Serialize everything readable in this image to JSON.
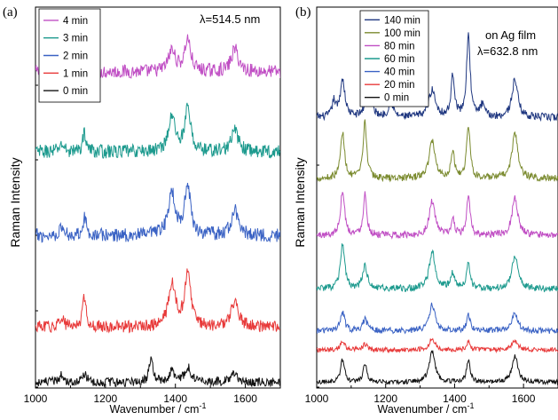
{
  "chart_data": [
    {
      "type": "line",
      "panel_label": "(a)",
      "title": "λ=514.5 nm",
      "xlabel": "Wavenumber / cm-1",
      "ylabel": "Raman Intensity",
      "xlim": [
        1000,
        1700
      ],
      "x_ticks": [
        "1000",
        "1200",
        "1400",
        "1600"
      ],
      "y_tick_labels": [],
      "series": [
        {
          "name": "4 min",
          "color": "#c04ec4",
          "baseline": 0.83,
          "noise": 0.018,
          "peaks": [
            [
              1140,
              0.03,
              6
            ],
            [
              1390,
              0.055,
              12
            ],
            [
              1435,
              0.085,
              10
            ],
            [
              1570,
              0.06,
              12
            ]
          ]
        },
        {
          "name": "3 min",
          "color": "#1d9a8e",
          "baseline": 0.62,
          "noise": 0.018,
          "peaks": [
            [
              1075,
              0.02,
              8
            ],
            [
              1140,
              0.05,
              6
            ],
            [
              1390,
              0.09,
              12
            ],
            [
              1435,
              0.11,
              10
            ],
            [
              1570,
              0.055,
              12
            ]
          ]
        },
        {
          "name": "2 min",
          "color": "#3a62c4",
          "baseline": 0.4,
          "noise": 0.018,
          "peaks": [
            [
              1075,
              0.02,
              8
            ],
            [
              1140,
              0.045,
              7
            ],
            [
              1390,
              0.11,
              12
            ],
            [
              1435,
              0.13,
              10
            ],
            [
              1570,
              0.065,
              12
            ]
          ]
        },
        {
          "name": "1 min",
          "color": "#e83a3a",
          "baseline": 0.16,
          "noise": 0.016,
          "peaks": [
            [
              1075,
              0.03,
              6
            ],
            [
              1140,
              0.08,
              6
            ],
            [
              1390,
              0.11,
              12
            ],
            [
              1435,
              0.14,
              10
            ],
            [
              1570,
              0.07,
              12
            ]
          ]
        },
        {
          "name": "0 min",
          "color": "#111111",
          "baseline": 0.015,
          "noise": 0.012,
          "peaks": [
            [
              1075,
              0.02,
              8
            ],
            [
              1140,
              0.02,
              8
            ],
            [
              1330,
              0.065,
              6
            ],
            [
              1390,
              0.03,
              10
            ],
            [
              1435,
              0.04,
              10
            ],
            [
              1570,
              0.025,
              10
            ]
          ]
        }
      ]
    },
    {
      "type": "line",
      "panel_label": "(b)",
      "title": "on Ag film",
      "subtitle": "λ=632.8 nm",
      "xlabel": "Wavenumber / cm-1",
      "ylabel": "Raman Intensity",
      "xlim": [
        1000,
        1700
      ],
      "x_ticks": [
        "1000",
        "1200",
        "1400",
        "1600"
      ],
      "y_tick_labels": [],
      "series": [
        {
          "name": "140 min",
          "color": "#1f3780",
          "baseline": 0.71,
          "noise": 0.01,
          "peaks": [
            [
              1050,
              0.04,
              6
            ],
            [
              1075,
              0.1,
              8
            ],
            [
              1150,
              0.07,
              10
            ],
            [
              1215,
              0.04,
              8
            ],
            [
              1335,
              0.07,
              12
            ],
            [
              1395,
              0.11,
              6
            ],
            [
              1440,
              0.22,
              6
            ],
            [
              1480,
              0.03,
              8
            ],
            [
              1575,
              0.1,
              10
            ]
          ]
        },
        {
          "name": "100 min",
          "color": "#7a8a2e",
          "baseline": 0.55,
          "noise": 0.009,
          "peaks": [
            [
              1075,
              0.12,
              7
            ],
            [
              1140,
              0.15,
              6
            ],
            [
              1335,
              0.1,
              10
            ],
            [
              1395,
              0.07,
              6
            ],
            [
              1440,
              0.14,
              6
            ],
            [
              1575,
              0.12,
              10
            ]
          ]
        },
        {
          "name": "80 min",
          "color": "#c04ec4",
          "baseline": 0.4,
          "noise": 0.009,
          "peaks": [
            [
              1075,
              0.12,
              7
            ],
            [
              1140,
              0.11,
              6
            ],
            [
              1335,
              0.09,
              10
            ],
            [
              1395,
              0.04,
              6
            ],
            [
              1440,
              0.1,
              6
            ],
            [
              1575,
              0.1,
              10
            ]
          ]
        },
        {
          "name": "60 min",
          "color": "#1d9a8e",
          "baseline": 0.26,
          "noise": 0.009,
          "peaks": [
            [
              1075,
              0.12,
              7
            ],
            [
              1140,
              0.06,
              8
            ],
            [
              1335,
              0.1,
              10
            ],
            [
              1395,
              0.04,
              8
            ],
            [
              1440,
              0.07,
              6
            ],
            [
              1575,
              0.09,
              10
            ]
          ]
        },
        {
          "name": "40 min",
          "color": "#3a62c4",
          "baseline": 0.15,
          "noise": 0.008,
          "peaks": [
            [
              1075,
              0.05,
              7
            ],
            [
              1140,
              0.03,
              8
            ],
            [
              1335,
              0.07,
              10
            ],
            [
              1440,
              0.04,
              6
            ],
            [
              1575,
              0.05,
              10
            ]
          ]
        },
        {
          "name": "20 min",
          "color": "#e83a3a",
          "baseline": 0.1,
          "noise": 0.006,
          "peaks": [
            [
              1075,
              0.025,
              7
            ],
            [
              1140,
              0.015,
              8
            ],
            [
              1335,
              0.03,
              10
            ],
            [
              1440,
              0.02,
              6
            ],
            [
              1575,
              0.025,
              10
            ]
          ]
        },
        {
          "name": "0 min",
          "color": "#111111",
          "baseline": 0.015,
          "noise": 0.006,
          "peaks": [
            [
              1075,
              0.06,
              7
            ],
            [
              1140,
              0.05,
              6
            ],
            [
              1335,
              0.08,
              10
            ],
            [
              1440,
              0.06,
              6
            ],
            [
              1575,
              0.07,
              10
            ]
          ]
        }
      ]
    }
  ]
}
